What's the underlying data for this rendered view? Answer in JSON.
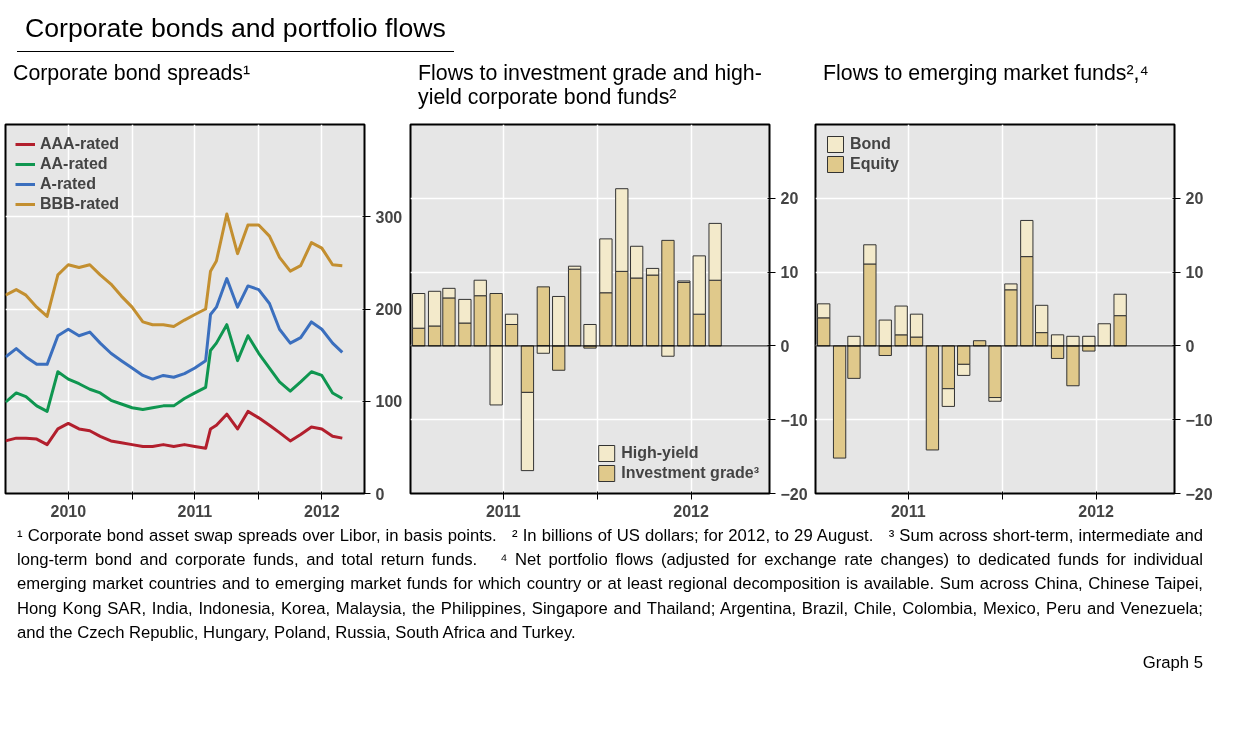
{
  "chart_data": [
    {
      "type": "other",
      "title": "Corporate bonds and portfolio flows"
    },
    {
      "type": "line",
      "title": "Corporate bond spreads¹",
      "x": [
        "2010-01-01",
        "2010-02-01",
        "2010-03-01",
        "2010-04-01",
        "2010-05-01",
        "2010-06-01",
        "2010-07-01",
        "2010-08-01",
        "2010-09-01",
        "2010-10-01",
        "2010-11-01",
        "2010-12-01",
        "2011-01-01",
        "2011-02-01",
        "2011-03-01",
        "2011-04-01",
        "2011-05-01",
        "2011-06-01",
        "2011-07-01",
        "2011-08-01",
        "2011-08-15",
        "2011-09-01",
        "2011-10-01",
        "2011-11-01",
        "2011-12-01",
        "2012-01-01",
        "2012-02-01",
        "2012-03-01",
        "2012-04-01",
        "2012-05-01",
        "2012-06-01",
        "2012-07-01",
        "2012-08-01",
        "2012-08-29"
      ],
      "series": [
        {
          "name": "AAA-rated",
          "color": "#b21f2d",
          "values": [
            57,
            60,
            60,
            59,
            53,
            70,
            76,
            70,
            68,
            62,
            57,
            55,
            53,
            51,
            51,
            53,
            51,
            53,
            51,
            49,
            70,
            74,
            86,
            70,
            89,
            82,
            74,
            66,
            57,
            64,
            72,
            70,
            62,
            60
          ]
        },
        {
          "name": "AA-rated",
          "color": "#0f9650",
          "values": [
            99,
            109,
            105,
            95,
            89,
            132,
            124,
            119,
            113,
            109,
            101,
            97,
            93,
            91,
            93,
            95,
            95,
            103,
            109,
            115,
            155,
            163,
            183,
            144,
            171,
            152,
            136,
            121,
            111,
            121,
            132,
            128,
            109,
            103
          ]
        },
        {
          "name": "A-rated",
          "color": "#3b6fbe",
          "values": [
            148,
            157,
            148,
            140,
            140,
            171,
            178,
            171,
            175,
            163,
            152,
            144,
            136,
            128,
            124,
            128,
            126,
            130,
            136,
            144,
            194,
            202,
            233,
            202,
            225,
            221,
            206,
            178,
            163,
            169,
            186,
            178,
            163,
            153
          ]
        },
        {
          "name": "BBB-rated",
          "color": "#c38f30",
          "values": [
            215,
            221,
            215,
            202,
            192,
            237,
            248,
            245,
            248,
            237,
            227,
            214,
            202,
            186,
            183,
            183,
            181,
            188,
            194,
            200,
            241,
            252,
            303,
            260,
            291,
            291,
            279,
            256,
            241,
            247,
            272,
            266,
            248,
            247
          ]
        }
      ],
      "xlim": [
        "2010-01-01",
        "2012-11-01"
      ],
      "xticks": [
        {
          "value": "2010-07-01",
          "label": "2010"
        },
        {
          "value": "2011-01-01",
          "label": null
        },
        {
          "value": "2011-07-01",
          "label": "2011"
        },
        {
          "value": "2012-01-01",
          "label": null
        },
        {
          "value": "2012-07-01",
          "label": "2012"
        }
      ],
      "ylim": [
        0,
        400
      ],
      "yticks": [
        0,
        100,
        200,
        300
      ],
      "grid": true,
      "legend": "top left"
    },
    {
      "type": "bar",
      "stacked": true,
      "title": "Flows to investment grade and high-yield corporate bond funds²",
      "x": [
        "2011-01",
        "2011-02",
        "2011-03",
        "2011-04",
        "2011-05",
        "2011-06",
        "2011-07",
        "2011-08",
        "2011-09",
        "2011-10",
        "2011-11",
        "2011-12",
        "2012-01",
        "2012-02",
        "2012-03",
        "2012-04",
        "2012-05",
        "2012-06",
        "2012-07",
        "2012-08"
      ],
      "series": [
        {
          "name": "Investment grade³",
          "color": "#e0c98b",
          "values": [
            2.4,
            2.7,
            6.5,
            3.1,
            6.8,
            7.1,
            2.9,
            -6.3,
            8.0,
            -3.3,
            10.4,
            -0.3,
            7.2,
            10.1,
            9.2,
            9.6,
            14.3,
            8.6,
            4.3,
            8.9
          ]
        },
        {
          "name": "High-yield",
          "color": "#f3eacb",
          "values": [
            4.7,
            4.7,
            1.3,
            3.2,
            2.1,
            -8.0,
            1.4,
            -10.6,
            -1.0,
            6.7,
            0.4,
            2.9,
            7.3,
            11.2,
            4.3,
            0.9,
            -1.4,
            0.2,
            7.9,
            7.7
          ]
        }
      ],
      "xlim": [
        "2010-12-16",
        "2012-11-15"
      ],
      "xticks": [
        {
          "value": "2011-06-15",
          "label": "2011"
        },
        {
          "value": "2011-12-16",
          "label": null
        },
        {
          "value": "2012-06-15",
          "label": "2012"
        }
      ],
      "ylim": [
        -20,
        30
      ],
      "yticks": [
        -20,
        -10,
        0,
        10,
        20
      ],
      "grid": true,
      "legend": "bottom right"
    },
    {
      "type": "bar",
      "stacked": true,
      "title": "Flows to emerging market funds²,⁴",
      "x": [
        "2011-01",
        "2011-02",
        "2011-03",
        "2011-04",
        "2011-05",
        "2011-06",
        "2011-07",
        "2011-08",
        "2011-09",
        "2011-10",
        "2011-11",
        "2011-12",
        "2012-01",
        "2012-02",
        "2012-03",
        "2012-04",
        "2012-05",
        "2012-06",
        "2012-07",
        "2012-08"
      ],
      "series": [
        {
          "name": "Equity",
          "color": "#e0c98b",
          "values": [
            3.8,
            -15.2,
            -4.4,
            11.1,
            -1.3,
            1.5,
            1.2,
            -14.1,
            -5.8,
            -2.5,
            0.7,
            -7.0,
            7.6,
            12.1,
            1.8,
            -1.7,
            -5.4,
            -0.7,
            null,
            4.1
          ]
        },
        {
          "name": "Bond",
          "color": "#f3eacb",
          "values": [
            1.9,
            null,
            1.3,
            2.6,
            3.5,
            3.9,
            3.1,
            null,
            -2.4,
            -1.5,
            null,
            -0.5,
            0.8,
            4.9,
            3.7,
            1.5,
            1.3,
            1.3,
            3.0,
            2.9
          ]
        }
      ],
      "xlim": [
        "2010-12-16",
        "2012-11-15"
      ],
      "xticks": [
        {
          "value": "2011-06-15",
          "label": "2011"
        },
        {
          "value": "2011-12-16",
          "label": null
        },
        {
          "value": "2012-06-15",
          "label": "2012"
        }
      ],
      "ylim": [
        -20,
        30
      ],
      "yticks": [
        -20,
        -10,
        0,
        10,
        20
      ],
      "grid": true,
      "legend": "top left"
    },
    {
      "type": "other",
      "annotations": [
        "¹ Corporate bond asset swap spreads over Libor, in basis points.",
        "² In billions of US dollars; for 2012, to 29 August.",
        "³ Sum across short-term, intermediate and long-term bond and corporate funds, and total return funds.",
        "⁴ Net portfolio flows (adjusted for exchange rate changes) to dedicated funds for individual emerging market countries and to emerging market funds for which country or at least regional decomposition is available. Sum across China, Chinese Taipei, Hong Kong SAR, India, Indonesia, Korea, Malaysia, the Philippines, Singapore and Thailand; Argentina, Brazil, Chile, Colombia, Mexico, Peru and Venezuela; and the Czech Republic, Hungary, Poland, Russia, South Africa and Turkey.",
        "Graph 5"
      ]
    }
  ]
}
